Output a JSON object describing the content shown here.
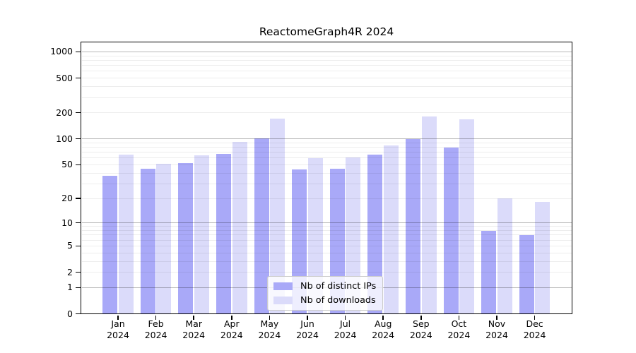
{
  "chart_data": {
    "type": "bar",
    "title": "ReactomeGraph4R 2024",
    "categories": [
      "Jan 2024",
      "Feb 2024",
      "Mar 2024",
      "Apr 2024",
      "May 2024",
      "Jun 2024",
      "Jul 2024",
      "Aug 2024",
      "Sep 2024",
      "Oct 2024",
      "Nov 2024",
      "Dec 2024"
    ],
    "series": [
      {
        "name": "Nb of distinct IPs",
        "color": "#a9a9f8",
        "values": [
          37,
          45,
          52,
          67,
          101,
          44,
          45,
          66,
          100,
          79,
          8,
          7
        ]
      },
      {
        "name": "Nb of downloads",
        "color": "#dbdbfa",
        "values": [
          66,
          51,
          65,
          93,
          171,
          60,
          61,
          84,
          180,
          168,
          20,
          18
        ]
      }
    ],
    "xlabel": "",
    "ylabel": "",
    "yscale": "log1p",
    "ylim": [
      0,
      1300
    ],
    "yticks": [
      0,
      1,
      2,
      5,
      10,
      20,
      50,
      100,
      200,
      500,
      1000
    ],
    "major_gridlines": [
      1,
      10,
      100,
      1000
    ],
    "minor_gridlines": [
      2,
      3,
      4,
      5,
      6,
      7,
      8,
      9,
      20,
      30,
      40,
      50,
      60,
      70,
      80,
      90,
      200,
      300,
      400,
      500,
      600,
      700,
      800,
      900
    ],
    "grid": true,
    "legend_position": "lower center",
    "axis_color": "#000000",
    "background_color": "#ffffff"
  }
}
